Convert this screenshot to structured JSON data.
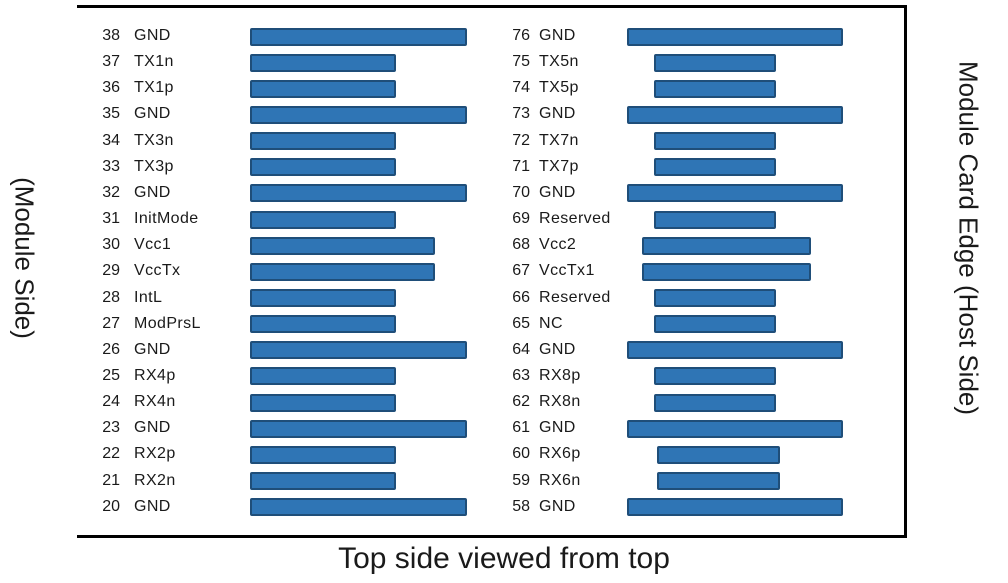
{
  "left_side_label": "(Module Side)",
  "right_side_label": "Module Card Edge (Host Side)",
  "caption": "Top side viewed from top",
  "colors": {
    "pad_fill": "#2f75b5",
    "pad_border": "#1f4e79"
  },
  "left_column": [
    {
      "num": "38",
      "name": "GND",
      "size": "long"
    },
    {
      "num": "37",
      "name": "TX1n",
      "size": "short"
    },
    {
      "num": "36",
      "name": "TX1p",
      "size": "short"
    },
    {
      "num": "35",
      "name": "GND",
      "size": "long"
    },
    {
      "num": "34",
      "name": "TX3n",
      "size": "short"
    },
    {
      "num": "33",
      "name": "TX3p",
      "size": "short"
    },
    {
      "num": "32",
      "name": "GND",
      "size": "long"
    },
    {
      "num": "31",
      "name": "InitMode",
      "size": "short"
    },
    {
      "num": "30",
      "name": "Vcc1",
      "size": "medium"
    },
    {
      "num": "29",
      "name": "VccTx",
      "size": "medium"
    },
    {
      "num": "28",
      "name": "IntL",
      "size": "short"
    },
    {
      "num": "27",
      "name": "ModPrsL",
      "size": "short"
    },
    {
      "num": "26",
      "name": "GND",
      "size": "long"
    },
    {
      "num": "25",
      "name": "RX4p",
      "size": "short"
    },
    {
      "num": "24",
      "name": "RX4n",
      "size": "short"
    },
    {
      "num": "23",
      "name": "GND",
      "size": "long"
    },
    {
      "num": "22",
      "name": "RX2p",
      "size": "short"
    },
    {
      "num": "21",
      "name": "RX2n",
      "size": "short"
    },
    {
      "num": "20",
      "name": "GND",
      "size": "long"
    }
  ],
  "right_column": [
    {
      "num": "76",
      "name": "GND",
      "size": "long"
    },
    {
      "num": "75",
      "name": "TX5n",
      "size": "short"
    },
    {
      "num": "74",
      "name": "TX5p",
      "size": "short"
    },
    {
      "num": "73",
      "name": "GND",
      "size": "long"
    },
    {
      "num": "72",
      "name": "TX7n",
      "size": "short"
    },
    {
      "num": "71",
      "name": "TX7p",
      "size": "short"
    },
    {
      "num": "70",
      "name": "GND",
      "size": "long"
    },
    {
      "num": "69",
      "name": "Reserved",
      "size": "short"
    },
    {
      "num": "68",
      "name": "Vcc2",
      "size": "medium"
    },
    {
      "num": "67",
      "name": "VccTx1",
      "size": "medium"
    },
    {
      "num": "66",
      "name": "Reserved",
      "size": "short"
    },
    {
      "num": "65",
      "name": "NC",
      "size": "short"
    },
    {
      "num": "64",
      "name": "GND",
      "size": "long"
    },
    {
      "num": "63",
      "name": "RX8p",
      "size": "short"
    },
    {
      "num": "62",
      "name": "RX8n",
      "size": "short"
    },
    {
      "num": "61",
      "name": "GND",
      "size": "long"
    },
    {
      "num": "60",
      "name": "RX6p",
      "size": "short2"
    },
    {
      "num": "59",
      "name": "RX6n",
      "size": "short2"
    },
    {
      "num": "58",
      "name": "GND",
      "size": "long"
    }
  ]
}
